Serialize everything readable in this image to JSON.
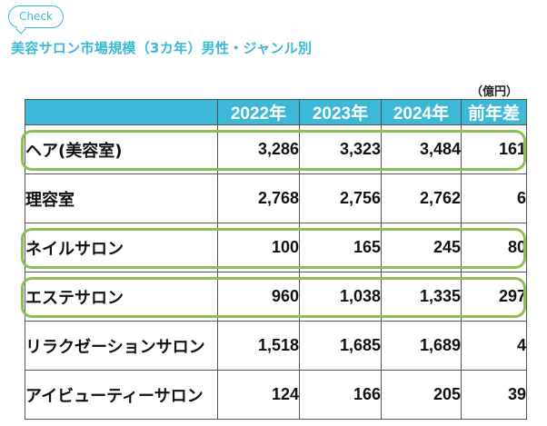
{
  "badge": {
    "label": "Check"
  },
  "title": "美容サロン市場規模（3カ年）男性・ジャンル別",
  "unit": "（億円）",
  "table": {
    "headers": [
      "",
      "2022年",
      "2023年",
      "2024年",
      "前年差"
    ],
    "rows": [
      {
        "genre": "ヘア(美容室)",
        "y2022": "3,286",
        "y2023": "3,323",
        "y2024": "3,484",
        "diff": "161",
        "highlighted": true
      },
      {
        "genre": "理容室",
        "y2022": "2,768",
        "y2023": "2,756",
        "y2024": "2,762",
        "diff": "6",
        "highlighted": false
      },
      {
        "genre": "ネイルサロン",
        "y2022": "100",
        "y2023": "165",
        "y2024": "245",
        "diff": "80",
        "highlighted": true
      },
      {
        "genre": "エステサロン",
        "y2022": "960",
        "y2023": "1,038",
        "y2024": "1,335",
        "diff": "297",
        "highlighted": true
      },
      {
        "genre": "リラクゼーションサロン",
        "y2022": "1,518",
        "y2023": "1,685",
        "y2024": "1,689",
        "diff": "4",
        "highlighted": false
      },
      {
        "genre": "アイビューティーサロン",
        "y2022": "124",
        "y2023": "166",
        "y2024": "205",
        "diff": "39",
        "highlighted": false
      }
    ]
  },
  "colors": {
    "accent": "#3bb9d6",
    "highlight_border": "#8cc152",
    "text": "#111111"
  }
}
